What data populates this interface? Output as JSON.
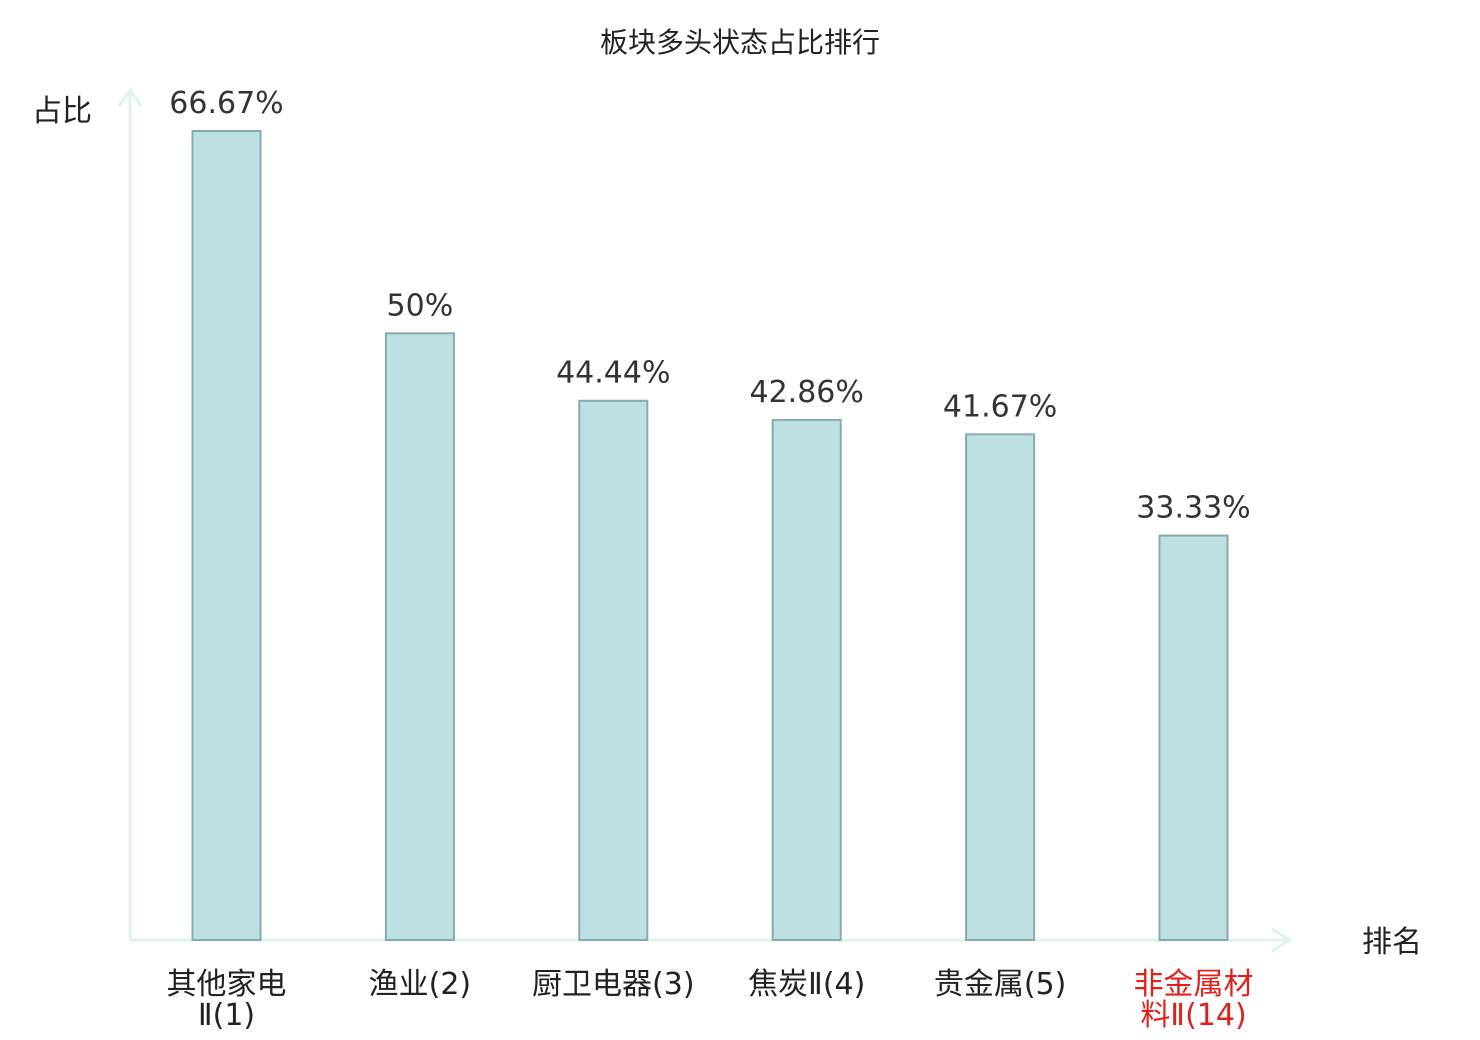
{
  "chart_data": {
    "type": "bar",
    "title": "板块多头状态占比排行",
    "xlabel": "排名",
    "ylabel": "占比",
    "categories": [
      {
        "name": "其他家电",
        "suffix": "Ⅱ(1)",
        "lines": [
          "其他家电",
          "Ⅱ(1)"
        ],
        "highlight": false
      },
      {
        "name": "渔业",
        "suffix": "(2)",
        "lines": [
          "渔业(2)"
        ],
        "highlight": false
      },
      {
        "name": "厨卫电器",
        "suffix": "(3)",
        "lines": [
          "厨卫电器(3)"
        ],
        "highlight": false
      },
      {
        "name": "焦炭",
        "suffix": "Ⅱ(4)",
        "lines": [
          "焦炭Ⅱ(4)"
        ],
        "highlight": false
      },
      {
        "name": "贵金属",
        "suffix": "(5)",
        "lines": [
          "贵金属(5)"
        ],
        "highlight": false
      },
      {
        "name": "非金属材料",
        "suffix": "Ⅱ(14)",
        "lines": [
          "非金属材",
          "料Ⅱ(14)"
        ],
        "highlight": true
      }
    ],
    "values": [
      66.67,
      50,
      44.44,
      42.86,
      41.67,
      33.33
    ],
    "value_labels": [
      "66.67%",
      "50%",
      "44.44%",
      "42.86%",
      "41.67%",
      "33.33%"
    ],
    "ylim": [
      0,
      66.67
    ],
    "grid": false,
    "colors": {
      "bar_fill": "#bde0e3",
      "bar_stroke": "#8aa9ab",
      "axis": "#e0f2f0",
      "highlight": "#e0201b",
      "text": "#222222"
    }
  }
}
